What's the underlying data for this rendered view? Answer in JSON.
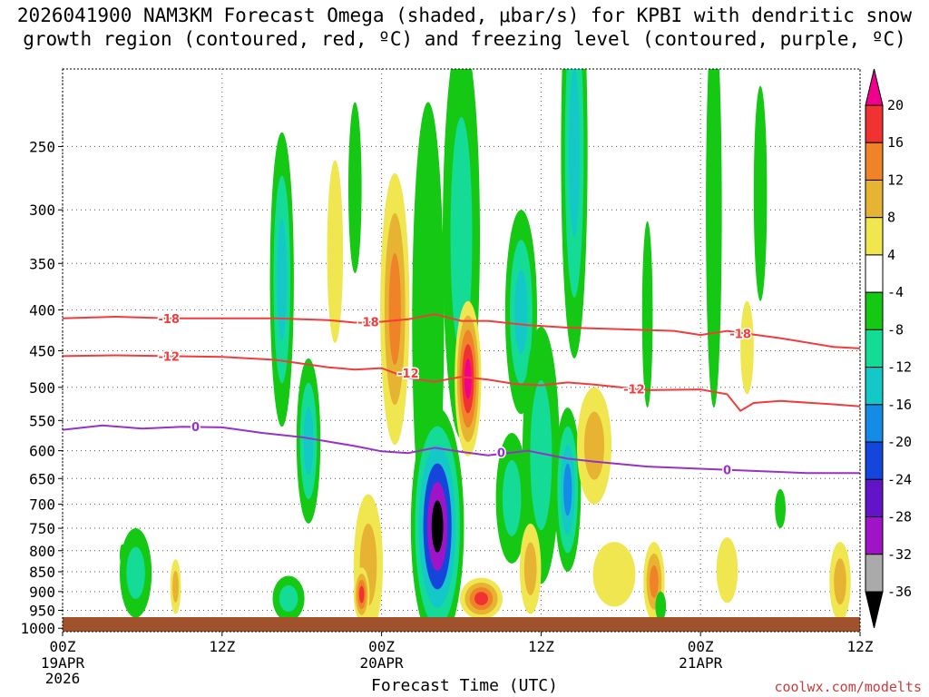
{
  "chart_data": {
    "type": "heatmap",
    "title_lines": [
      "2026041900 NAM3KM Forecast Omega (shaded, μbar/s) for KPBI with dendritic snow",
      "growth region (contoured, red, ºC) and freezing level (contoured, purple, ºC)"
    ],
    "xlabel": "Forecast Time (UTC)",
    "x_ticks": [
      {
        "hour": 0,
        "label": "00Z",
        "sub": [
          "19APR",
          "2026"
        ]
      },
      {
        "hour": 12,
        "label": "12Z",
        "sub": []
      },
      {
        "hour": 24,
        "label": "00Z",
        "sub": [
          "20APR"
        ]
      },
      {
        "hour": 36,
        "label": "12Z",
        "sub": []
      },
      {
        "hour": 48,
        "label": "00Z",
        "sub": [
          "21APR"
        ]
      },
      {
        "hour": 60,
        "label": "12Z",
        "sub": []
      }
    ],
    "xlim": [
      0,
      60
    ],
    "y_ticks": [
      250,
      300,
      350,
      400,
      450,
      500,
      550,
      600,
      650,
      700,
      750,
      800,
      850,
      900,
      950,
      1000
    ],
    "ylim": [
      200,
      1010
    ],
    "grid": true,
    "colorbar": {
      "labels": [
        "20",
        "16",
        "12",
        "8",
        "4",
        "-4",
        "-8",
        "-12",
        "-16",
        "-20",
        "-24",
        "-28",
        "-32",
        "-36"
      ],
      "colors": [
        "#f0008c",
        "#f03232",
        "#f08228",
        "#e6b432",
        "#f0e650",
        "#ffffff",
        "#14c814",
        "#14dc96",
        "#14c8c8",
        "#148ce6",
        "#1446dc",
        "#6414c8",
        "#a014c8",
        "#aaaaaa",
        "#000000"
      ]
    },
    "series": [
      {
        "level": "-18",
        "color": "#f03c3c",
        "points": [
          [
            0,
            410
          ],
          [
            4,
            408
          ],
          [
            8,
            410
          ],
          [
            12,
            410
          ],
          [
            16,
            410
          ],
          [
            20,
            412
          ],
          [
            22,
            415
          ],
          [
            24,
            414
          ],
          [
            26,
            411
          ],
          [
            28,
            405
          ],
          [
            30,
            413
          ],
          [
            32,
            413
          ],
          [
            35,
            418
          ],
          [
            38,
            421
          ],
          [
            42,
            423
          ],
          [
            46,
            425
          ],
          [
            48,
            430
          ],
          [
            50,
            425
          ],
          [
            54,
            434
          ],
          [
            58,
            445
          ],
          [
            60,
            447
          ]
        ]
      },
      {
        "level": "-12",
        "color": "#f03c3c",
        "points": [
          [
            0,
            457
          ],
          [
            4,
            456
          ],
          [
            8,
            457
          ],
          [
            12,
            458
          ],
          [
            16,
            462
          ],
          [
            20,
            472
          ],
          [
            22,
            475
          ],
          [
            24,
            473
          ],
          [
            26,
            487
          ],
          [
            28,
            492
          ],
          [
            30,
            485
          ],
          [
            32,
            489
          ],
          [
            34,
            495
          ],
          [
            36,
            497
          ],
          [
            38,
            493
          ],
          [
            40,
            496
          ],
          [
            42,
            500
          ],
          [
            44,
            504
          ],
          [
            48,
            503
          ],
          [
            50,
            510
          ],
          [
            51,
            535
          ],
          [
            52,
            523
          ],
          [
            54,
            520
          ],
          [
            58,
            525
          ],
          [
            60,
            528
          ]
        ]
      },
      {
        "level": "0",
        "color": "#9632c8",
        "points": [
          [
            0,
            565
          ],
          [
            3,
            558
          ],
          [
            6,
            563
          ],
          [
            9,
            560
          ],
          [
            12,
            561
          ],
          [
            15,
            570
          ],
          [
            18,
            577
          ],
          [
            22,
            592
          ],
          [
            24,
            601
          ],
          [
            26,
            604
          ],
          [
            28,
            595
          ],
          [
            30,
            602
          ],
          [
            32,
            608
          ],
          [
            35,
            600
          ],
          [
            38,
            614
          ],
          [
            40,
            619
          ],
          [
            44,
            628
          ],
          [
            48,
            632
          ],
          [
            52,
            636
          ],
          [
            56,
            640
          ],
          [
            60,
            640
          ]
        ]
      }
    ],
    "contour_labels": [
      {
        "text": "-18",
        "hour": 8,
        "p": 410
      },
      {
        "text": "-18",
        "hour": 23,
        "p": 414
      },
      {
        "text": "-18",
        "hour": 51,
        "p": 428
      },
      {
        "text": "-12",
        "hour": 8,
        "p": 457
      },
      {
        "text": "-12",
        "hour": 26,
        "p": 480
      },
      {
        "text": "-12",
        "hour": 43,
        "p": 502
      },
      {
        "text": "0",
        "hour": 10,
        "p": 560
      },
      {
        "text": "0",
        "hour": 33,
        "p": 603
      },
      {
        "text": "0",
        "hour": 50,
        "p": 634
      }
    ],
    "omega_blobs": [
      {
        "hour": 16.5,
        "p": 400,
        "dh": 0.9,
        "dp": 160,
        "levels": [
          -4,
          -8,
          -12
        ]
      },
      {
        "hour": 20.5,
        "p": 350,
        "dh": 0.6,
        "dp": 90,
        "levels": [
          4
        ]
      },
      {
        "hour": 22,
        "p": 290,
        "dh": 0.5,
        "dp": 70,
        "levels": [
          -4
        ]
      },
      {
        "hour": 25,
        "p": 430,
        "dh": 1.1,
        "dp": 160,
        "levels": [
          4,
          8,
          12
        ]
      },
      {
        "hour": 30,
        "p": 380,
        "dh": 1.4,
        "dp": 200,
        "levels": [
          -4,
          -8
        ]
      },
      {
        "hour": 34.5,
        "p": 420,
        "dh": 1.2,
        "dp": 120,
        "levels": [
          -4,
          -8,
          -12
        ]
      },
      {
        "hour": 38.5,
        "p": 300,
        "dh": 1.0,
        "dp": 160,
        "levels": [
          -4,
          -8,
          -12
        ]
      },
      {
        "hour": 36,
        "p": 650,
        "dh": 1.4,
        "dp": 230,
        "levels": [
          -4,
          -8
        ]
      },
      {
        "hour": 44,
        "p": 420,
        "dh": 0.4,
        "dp": 110,
        "levels": [
          -4
        ]
      },
      {
        "hour": 49,
        "p": 350,
        "dh": 0.6,
        "dp": 180,
        "levels": [
          -4
        ]
      },
      {
        "hour": 52.5,
        "p": 300,
        "dh": 0.5,
        "dp": 90,
        "levels": [
          -4
        ]
      },
      {
        "hour": 51.5,
        "p": 450,
        "dh": 0.5,
        "dp": 60,
        "levels": [
          4
        ]
      },
      {
        "hour": 5.5,
        "p": 860,
        "dh": 1.2,
        "dp": 110,
        "levels": [
          -4,
          -8
        ]
      },
      {
        "hour": 8.5,
        "p": 890,
        "dh": 0.4,
        "dp": 70,
        "levels": [
          4,
          8
        ]
      },
      {
        "hour": 18.5,
        "p": 600,
        "dh": 0.9,
        "dp": 140,
        "levels": [
          -4,
          -8,
          -12
        ]
      },
      {
        "hour": 17,
        "p": 920,
        "dh": 1.2,
        "dp": 60,
        "levels": [
          -4,
          -8
        ]
      },
      {
        "hour": 23,
        "p": 850,
        "dh": 1.1,
        "dp": 170,
        "levels": [
          4,
          8
        ]
      },
      {
        "hour": 22.5,
        "p": 910,
        "dh": 0.6,
        "dp": 70,
        "levels": [
          4,
          8,
          12,
          16
        ]
      },
      {
        "hour": 27.5,
        "p": 500,
        "dh": 1.2,
        "dp": 280,
        "levels": [
          -4
        ]
      },
      {
        "hour": 28.2,
        "p": 790,
        "dh": 2.0,
        "dp": 260,
        "levels": [
          -4,
          -8,
          -12,
          -20,
          -28,
          -36
        ]
      },
      {
        "hour": 30.5,
        "p": 500,
        "dh": 1.0,
        "dp": 110,
        "levels": [
          4,
          8,
          12,
          16,
          20
        ]
      },
      {
        "hour": 31.5,
        "p": 920,
        "dh": 1.6,
        "dp": 55,
        "levels": [
          4,
          8,
          12,
          16
        ]
      },
      {
        "hour": 33.8,
        "p": 700,
        "dh": 1.2,
        "dp": 130,
        "levels": [
          -4,
          -8
        ]
      },
      {
        "hour": 35.2,
        "p": 850,
        "dh": 0.8,
        "dp": 110,
        "levels": [
          4,
          8
        ]
      },
      {
        "hour": 38,
        "p": 690,
        "dh": 1.0,
        "dp": 160,
        "levels": [
          -4,
          -8,
          -12,
          -16
        ]
      },
      {
        "hour": 40,
        "p": 600,
        "dh": 1.3,
        "dp": 100,
        "levels": [
          4,
          8
        ]
      },
      {
        "hour": 41.5,
        "p": 860,
        "dh": 1.6,
        "dp": 80,
        "levels": [
          4
        ]
      },
      {
        "hour": 44.5,
        "p": 880,
        "dh": 0.8,
        "dp": 100,
        "levels": [
          4,
          8,
          12
        ]
      },
      {
        "hour": 45,
        "p": 940,
        "dh": 0.4,
        "dp": 40,
        "levels": [
          -4
        ]
      },
      {
        "hour": 50,
        "p": 850,
        "dh": 0.8,
        "dp": 80,
        "levels": [
          4
        ]
      },
      {
        "hour": 54,
        "p": 710,
        "dh": 0.4,
        "dp": 40,
        "levels": [
          -4
        ]
      },
      {
        "hour": 58.5,
        "p": 880,
        "dh": 0.8,
        "dp": 100,
        "levels": [
          4,
          8
        ]
      },
      {
        "hour": 4.5,
        "p": 810,
        "dh": 0.2,
        "dp": 25,
        "levels": [
          -4
        ]
      }
    ],
    "terrain": {
      "color": "#a0522d",
      "top_p": 1010
    }
  },
  "credit": "coolwx.com/modelts"
}
